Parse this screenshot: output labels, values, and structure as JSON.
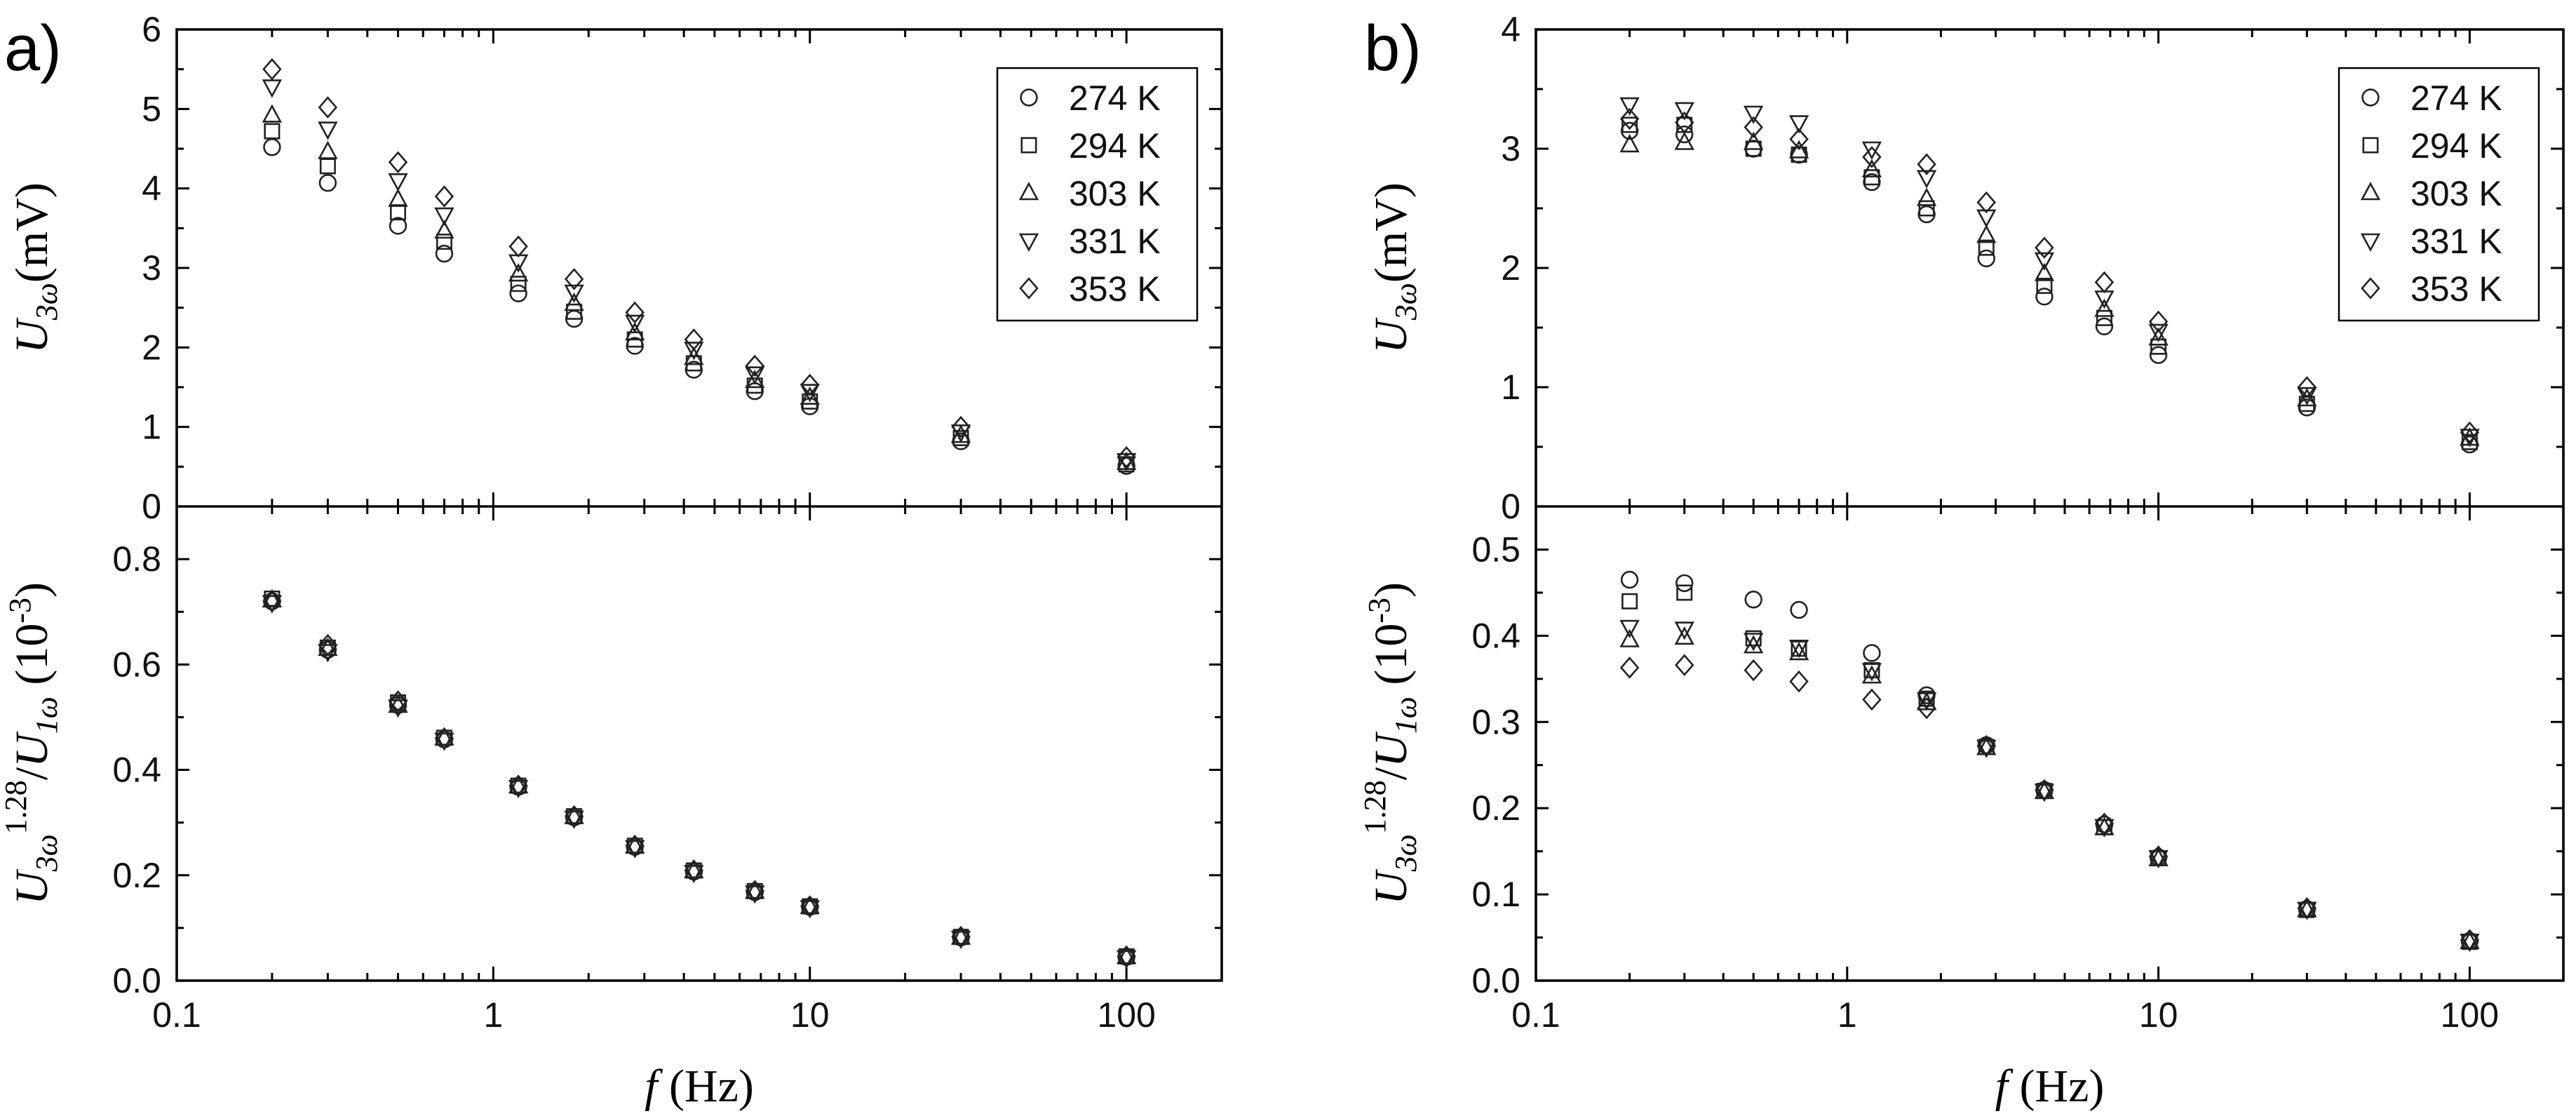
{
  "chart_data": [
    {
      "type": "scatter",
      "panel": "a",
      "panel_label": "a)",
      "xscale": "log",
      "xlim": [
        0.1,
        200
      ],
      "xlabel": {
        "italic": "f",
        "unit": "(Hz)"
      },
      "x_ticks": [
        "0.1",
        "1",
        "10",
        "100"
      ],
      "x": [
        0.2,
        0.3,
        0.5,
        0.7,
        1.2,
        1.8,
        2.8,
        4.3,
        6.7,
        10,
        30,
        100
      ],
      "legend": {
        "position": "top-right",
        "entries": [
          {
            "name": "274 K",
            "marker": "circle"
          },
          {
            "name": "294 K",
            "marker": "square"
          },
          {
            "name": "303 K",
            "marker": "triangle-up"
          },
          {
            "name": "331 K",
            "marker": "triangle-down"
          },
          {
            "name": "353 K",
            "marker": "diamond"
          }
        ]
      },
      "top": {
        "ylabel": {
          "base": "U",
          "sub": "3ω",
          "unit": "(mV)"
        },
        "ylim": [
          0,
          6
        ],
        "y_ticks": [
          "0",
          "1",
          "2",
          "3",
          "4",
          "5",
          "6"
        ],
        "series": [
          {
            "name": "274 K",
            "values": [
              4.52,
              4.07,
              3.53,
              3.18,
              2.68,
              2.36,
              2.02,
              1.72,
              1.45,
              1.26,
              0.82,
              0.51
            ]
          },
          {
            "name": "294 K",
            "values": [
              4.72,
              4.28,
              3.7,
              3.33,
              2.8,
              2.45,
              2.1,
              1.8,
              1.52,
              1.32,
              0.86,
              0.53
            ]
          },
          {
            "name": "303 K",
            "values": [
              4.92,
              4.46,
              3.86,
              3.46,
              2.92,
              2.55,
              2.18,
              1.87,
              1.58,
              1.37,
              0.89,
              0.55
            ]
          },
          {
            "name": "331 K",
            "values": [
              5.28,
              4.75,
              4.1,
              3.67,
              3.08,
              2.7,
              2.32,
              1.98,
              1.67,
              1.45,
              0.94,
              0.58
            ]
          },
          {
            "name": "353 K",
            "values": [
              5.5,
              5.02,
              4.33,
              3.9,
              3.27,
              2.86,
              2.44,
              2.1,
              1.77,
              1.53,
              1.0,
              0.62
            ]
          }
        ]
      },
      "bottom": {
        "ylabel": {
          "base": "U",
          "sub": "3ω",
          "power": "1.28",
          "slash": "/",
          "base2": "U",
          "sub2": "1ω",
          "unit_open": "(10",
          "unit_exp": "-3",
          "unit_close": ")"
        },
        "ylim": [
          0,
          0.9
        ],
        "y_ticks": [
          "0.0",
          "0.2",
          "0.4",
          "0.6",
          "0.8"
        ],
        "series": [
          {
            "name": "274 K",
            "values": [
              0.72,
              0.628,
              0.523,
              0.458,
              0.368,
              0.31,
              0.254,
              0.207,
              0.168,
              0.14,
              0.082,
              0.045
            ]
          },
          {
            "name": "294 K",
            "values": [
              0.725,
              0.632,
              0.528,
              0.461,
              0.37,
              0.312,
              0.256,
              0.209,
              0.17,
              0.141,
              0.083,
              0.046
            ]
          },
          {
            "name": "303 K",
            "values": [
              0.722,
              0.63,
              0.522,
              0.46,
              0.369,
              0.311,
              0.255,
              0.208,
              0.169,
              0.14,
              0.082,
              0.045
            ]
          },
          {
            "name": "331 K",
            "values": [
              0.718,
              0.625,
              0.52,
              0.457,
              0.367,
              0.309,
              0.253,
              0.206,
              0.167,
              0.139,
              0.081,
              0.044
            ]
          },
          {
            "name": "353 K",
            "values": [
              0.72,
              0.637,
              0.53,
              0.46,
              0.37,
              0.312,
              0.256,
              0.209,
              0.17,
              0.141,
              0.083,
              0.046
            ]
          }
        ]
      }
    },
    {
      "type": "scatter",
      "panel": "b",
      "panel_label": "b)",
      "xscale": "log",
      "xlim": [
        0.1,
        200
      ],
      "xlabel": {
        "italic": "f",
        "unit": "(Hz)"
      },
      "x_ticks": [
        "0.1",
        "1",
        "10",
        "100"
      ],
      "x": [
        0.2,
        0.3,
        0.5,
        0.7,
        1.2,
        1.8,
        2.8,
        4.3,
        6.7,
        10,
        30,
        100
      ],
      "legend": {
        "position": "top-right",
        "entries": [
          {
            "name": "274 K",
            "marker": "circle"
          },
          {
            "name": "294 K",
            "marker": "square"
          },
          {
            "name": "303 K",
            "marker": "triangle-up"
          },
          {
            "name": "331 K",
            "marker": "triangle-down"
          },
          {
            "name": "353 K",
            "marker": "diamond"
          }
        ]
      },
      "top": {
        "ylabel": {
          "base": "U",
          "sub": "3ω",
          "unit": "(mV)"
        },
        "ylim": [
          0,
          4
        ],
        "y_ticks": [
          "0",
          "1",
          "2",
          "3",
          "4"
        ],
        "series": [
          {
            "name": "274 K",
            "values": [
              3.15,
              3.12,
              3.0,
              2.95,
              2.72,
              2.45,
              2.08,
              1.76,
              1.51,
              1.27,
              0.83,
              0.52
            ]
          },
          {
            "name": "294 K",
            "values": [
              3.2,
              3.2,
              3.0,
              2.95,
              2.76,
              2.5,
              2.17,
              1.85,
              1.58,
              1.34,
              0.86,
              0.54
            ]
          },
          {
            "name": "303 K",
            "values": [
              3.03,
              3.05,
              3.05,
              2.98,
              2.82,
              2.58,
              2.27,
              1.95,
              1.65,
              1.41,
              0.9,
              0.57
            ]
          },
          {
            "name": "331 K",
            "values": [
              3.37,
              3.33,
              3.3,
              3.22,
              3.0,
              2.76,
              2.43,
              2.07,
              1.75,
              1.47,
              0.94,
              0.59
            ]
          },
          {
            "name": "353 K",
            "values": [
              3.25,
              3.22,
              3.18,
              3.08,
              2.93,
              2.87,
              2.55,
              2.17,
              1.88,
              1.55,
              1.0,
              0.62
            ]
          }
        ]
      },
      "bottom": {
        "ylabel": {
          "base": "U",
          "sub": "3ω",
          "power": "1.28",
          "slash": "/",
          "base2": "U",
          "sub2": "1ω",
          "unit_open": "(10",
          "unit_exp": "-3",
          "unit_close": ")"
        },
        "ylim": [
          0,
          0.55
        ],
        "y_ticks": [
          "0.0",
          "0.1",
          "0.2",
          "0.3",
          "0.4",
          "0.5"
        ],
        "series": [
          {
            "name": "274 K",
            "values": [
              0.465,
              0.461,
              0.442,
              0.43,
              0.38,
              0.331,
              0.273,
              0.221,
              0.181,
              0.143,
              0.083,
              0.046
            ]
          },
          {
            "name": "294 K",
            "values": [
              0.44,
              0.45,
              0.397,
              0.385,
              0.36,
              0.327,
              0.271,
              0.22,
              0.178,
              0.142,
              0.082,
              0.045
            ]
          },
          {
            "name": "303 K",
            "values": [
              0.395,
              0.398,
              0.388,
              0.38,
              0.353,
              0.322,
              0.27,
              0.219,
              0.177,
              0.141,
              0.082,
              0.045
            ]
          },
          {
            "name": "331 K",
            "values": [
              0.41,
              0.408,
              0.395,
              0.387,
              0.36,
              0.326,
              0.271,
              0.22,
              0.179,
              0.143,
              0.083,
              0.046
            ]
          },
          {
            "name": "353 K",
            "values": [
              0.363,
              0.366,
              0.36,
              0.347,
              0.326,
              0.316,
              0.272,
              0.221,
              0.182,
              0.144,
              0.084,
              0.047
            ]
          }
        ]
      }
    }
  ]
}
